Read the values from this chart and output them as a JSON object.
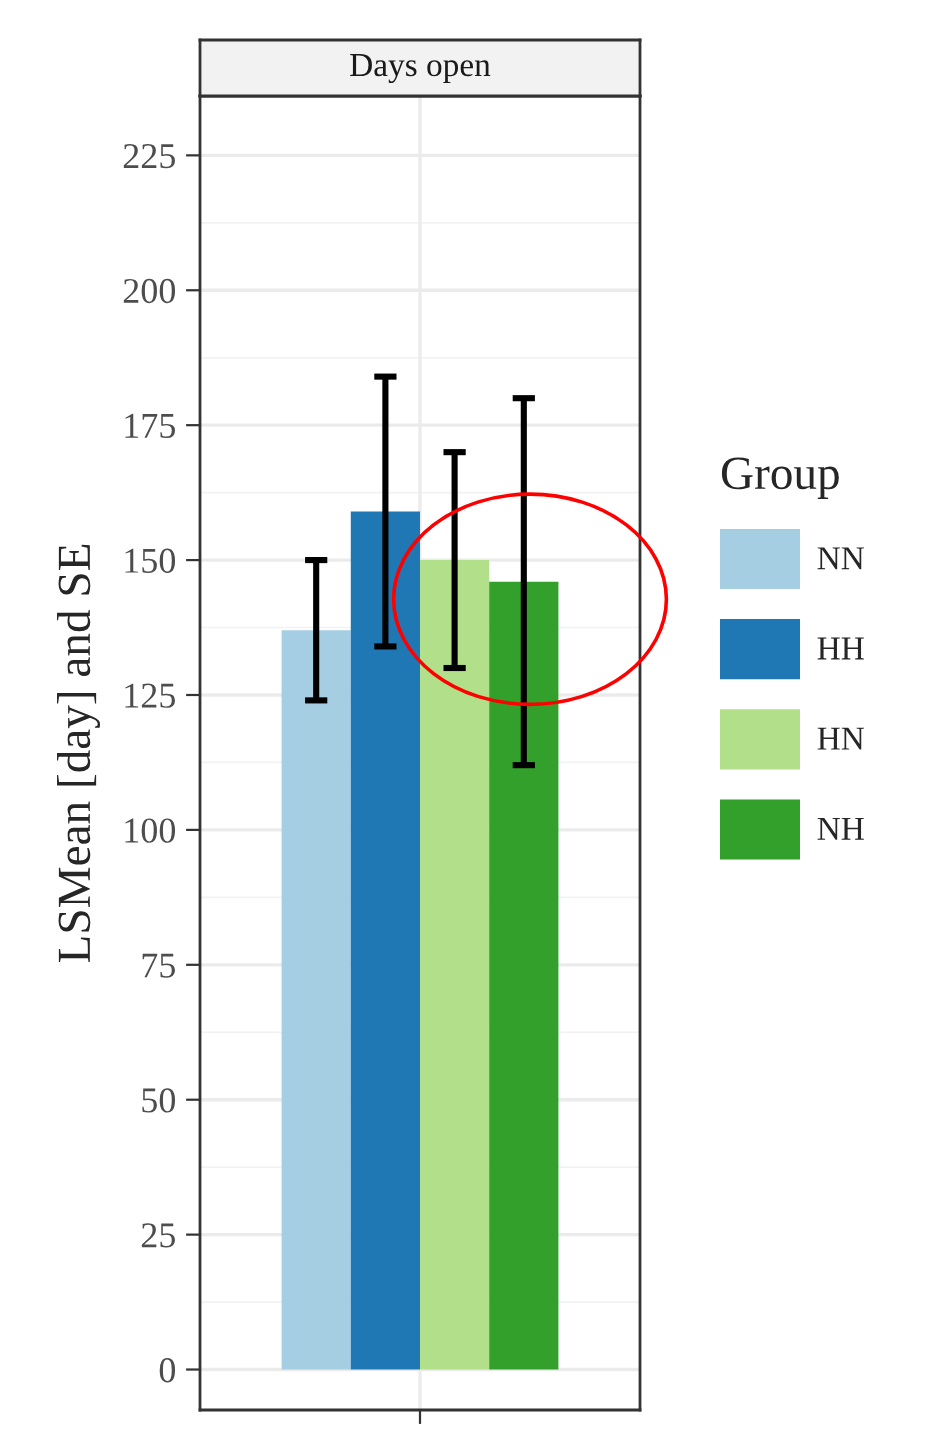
{
  "chart_data": {
    "type": "bar",
    "title": "Days open",
    "ylabel": "LSMean [day] and SE",
    "legend_title": "Group",
    "categories": [
      null
    ],
    "series": [
      {
        "name": "NN",
        "color": "#a6cee3",
        "values": [
          137
        ],
        "errors": [
          13
        ]
      },
      {
        "name": "HH",
        "color": "#1f78b4",
        "values": [
          159
        ],
        "errors": [
          25
        ]
      },
      {
        "name": "HN",
        "color": "#b2df8a",
        "values": [
          150
        ],
        "errors": [
          20
        ]
      },
      {
        "name": "NH",
        "color": "#33a02c",
        "values": [
          146
        ],
        "errors": [
          34
        ]
      }
    ],
    "ylim": [
      -7.5,
      236
    ],
    "yticks": [
      0,
      25,
      50,
      75,
      100,
      125,
      150,
      175,
      200,
      225
    ],
    "grid": true,
    "legend": "right"
  }
}
